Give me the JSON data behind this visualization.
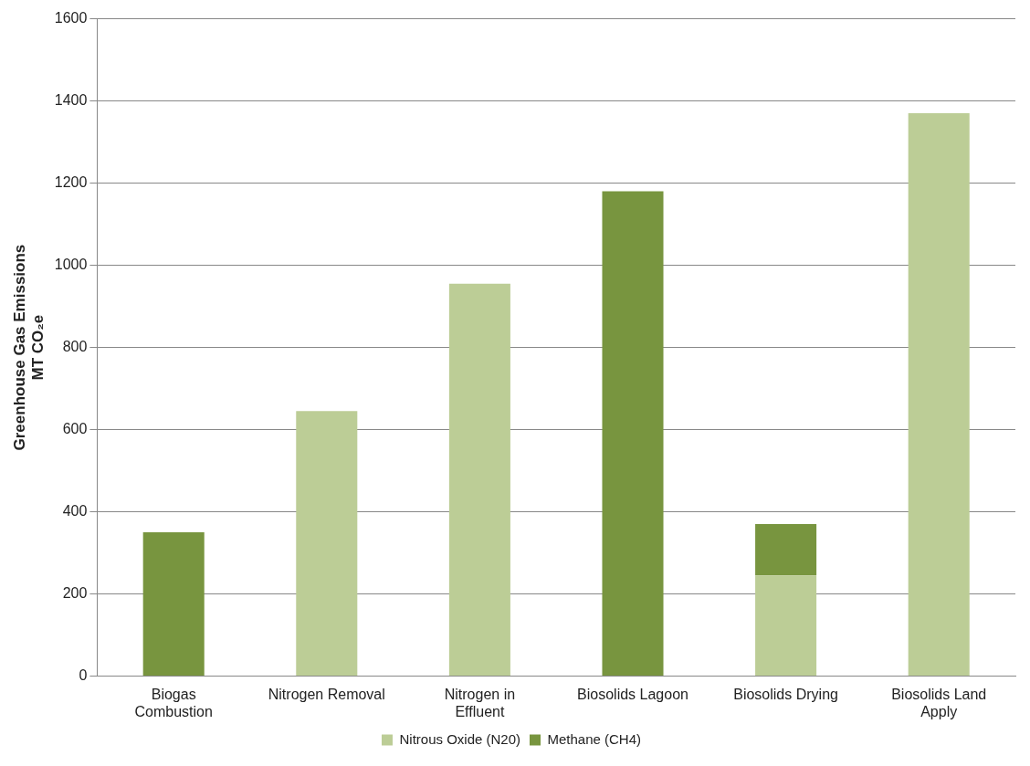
{
  "chart_data": {
    "type": "bar",
    "stacked": true,
    "ylabel": "Greenhouse Gas Emissions\nMT CO₂e",
    "categories": [
      "Biogas Combustion",
      "Nitrogen Removal",
      "Nitrogen in Effluent",
      "Biosolids Lagoon",
      "Biosolids Drying",
      "Biosolids Land Apply"
    ],
    "series": [
      {
        "name": "Nitrous Oxide (N20)",
        "color": "#bccd96",
        "values": [
          null,
          645,
          955,
          null,
          245,
          1370
        ]
      },
      {
        "name": "Methane (CH4)",
        "color": "#78953f",
        "values": [
          350,
          null,
          null,
          1180,
          125,
          null
        ]
      }
    ],
    "ylim": [
      0,
      1600
    ],
    "yticks": [
      0,
      200,
      400,
      600,
      800,
      1000,
      1200,
      1400,
      1600
    ],
    "grid": "y",
    "legend": "bottom"
  }
}
